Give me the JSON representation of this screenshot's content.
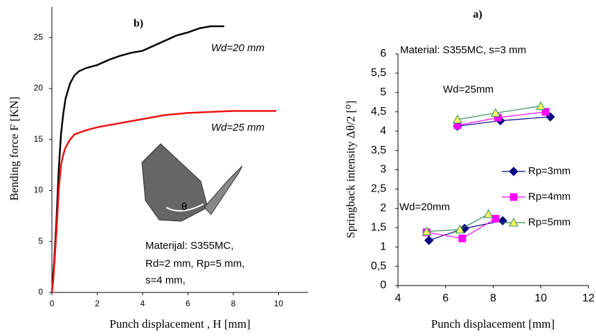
{
  "chart_data": [
    {
      "type": "line",
      "title": "b)",
      "ylabel": "Bending force F [KN]",
      "xlabel": "Punch displacement , H [mm]",
      "xlim": [
        0,
        11.3
      ],
      "xticks": [
        0,
        2,
        4,
        6,
        8,
        10
      ],
      "ylim": [
        0,
        28
      ],
      "yticks": [
        0,
        5,
        10,
        15,
        20,
        25
      ],
      "grid": false,
      "series": [
        {
          "color": "#000000",
          "x": [
            0,
            0.05,
            0.1,
            0.2,
            0.3,
            0.4,
            0.5,
            0.6,
            0.8,
            1,
            1.2,
            1.5,
            2,
            2.5,
            3,
            3.5,
            4,
            4.5,
            5,
            5.5,
            6,
            6.5,
            7,
            7.6
          ],
          "values": [
            0,
            1.5,
            3,
            7,
            12,
            15.5,
            17.5,
            19,
            20.5,
            21.3,
            21.7,
            22,
            22.3,
            22.8,
            23.2,
            23.5,
            23.7,
            24.2,
            24.7,
            25.2,
            25.5,
            25.9,
            26.1,
            26.1
          ]
        },
        {
          "color": "#ee1111",
          "x": [
            0,
            0.05,
            0.1,
            0.2,
            0.3,
            0.4,
            0.5,
            0.6,
            0.8,
            1,
            1.5,
            2,
            3,
            4,
            5,
            6,
            7,
            8,
            9,
            9.9
          ],
          "values": [
            0,
            1,
            2.5,
            6,
            10,
            12.5,
            13.5,
            14.2,
            15,
            15.5,
            15.9,
            16.2,
            16.6,
            17,
            17.4,
            17.6,
            17.7,
            17.8,
            17.8,
            17.8
          ]
        }
      ],
      "annotations": [
        "Wd=20 mm",
        "Wd=25 mm",
        "θ",
        "Materijal: S355MC,",
        "Rd=2 mm, Rp=5 mm,",
        "s=4 mm,"
      ]
    },
    {
      "type": "line",
      "title": "a)",
      "ylabel": "Springback intensity Δθ/2 [⁰]",
      "xlabel": "Punch displacement  [mm]",
      "xlim": [
        4,
        12
      ],
      "xticks": [
        4,
        6,
        8,
        10,
        12
      ],
      "ylim": [
        0,
        6
      ],
      "yticks": [
        0,
        {
          "value": 0.5,
          "label": "0,5"
        },
        1,
        {
          "value": 1.5,
          "label": "1,5"
        },
        2,
        {
          "value": 2.5,
          "label": "2,5"
        },
        3,
        {
          "value": 3.5,
          "label": "3,5"
        },
        4,
        {
          "value": 4.5,
          "label": "4,5"
        },
        5,
        {
          "value": 5.5,
          "label": "5,5"
        },
        6
      ],
      "grid": false,
      "legend": "right",
      "series": [
        {
          "name": "Rp=3mm",
          "color": "#000080",
          "marker": "diamond",
          "marker_fill": "#000080",
          "x": [
            5.3,
            6.8,
            8.4,
            null,
            6.5,
            8.3,
            10.4
          ],
          "values": [
            1.17,
            1.48,
            1.68,
            null,
            4.13,
            4.27,
            4.37
          ]
        },
        {
          "name": "Rp=4mm",
          "color": "#ff00ff",
          "marker": "square",
          "marker_fill": "#ff00ff",
          "x": [
            5.2,
            6.7,
            8.1,
            null,
            6.5,
            8.2,
            10.2
          ],
          "values": [
            1.38,
            1.22,
            1.73,
            null,
            4.15,
            4.35,
            4.5
          ]
        },
        {
          "name": "Rp=5mm",
          "color": "#2e8b57",
          "marker": "triangle",
          "marker_fill": "#ffff66",
          "x": [
            5.2,
            6.6,
            7.8,
            null,
            6.5,
            8.1,
            10
          ],
          "values": [
            1.4,
            1.45,
            1.85,
            null,
            4.3,
            4.47,
            4.65
          ]
        }
      ],
      "annotations": [
        "Material: S355MC, s=3 mm",
        "Wd=25mm",
        "Wd=20mm"
      ]
    }
  ]
}
